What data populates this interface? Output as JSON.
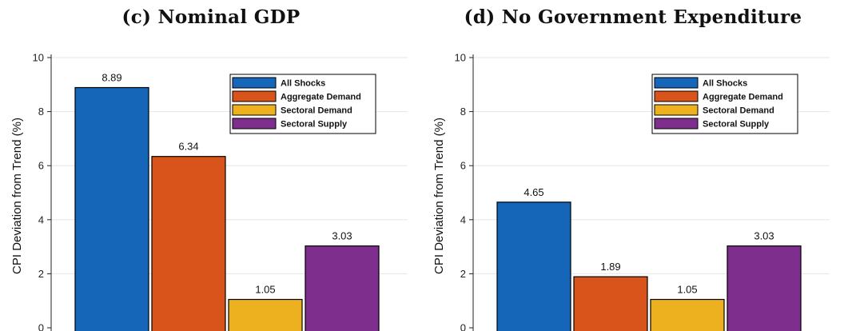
{
  "colors": {
    "all_shocks": "#1565b8",
    "aggregate_demand": "#d9541a",
    "sectoral_demand": "#edb120",
    "sectoral_supply": "#7e2f8e"
  },
  "chart_data": [
    {
      "type": "bar",
      "title": "(c) Nominal GDP",
      "ylabel": "CPI Deviation from Trend (%)",
      "ylim": [
        0,
        10
      ],
      "yticks": [
        0,
        2,
        4,
        6,
        8,
        10
      ],
      "grid": true,
      "legend_position": "top-right",
      "categories": [
        "All Shocks",
        "Aggregate Demand",
        "Sectoral Demand",
        "Sectoral Supply"
      ],
      "values": [
        8.89,
        6.34,
        1.05,
        3.03
      ],
      "data_labels": [
        "8.89",
        "6.34",
        "1.05",
        "3.03"
      ]
    },
    {
      "type": "bar",
      "title": "(d) No Government Expenditure",
      "ylabel": "CPI Deviation from Trend (%)",
      "ylim": [
        0,
        10
      ],
      "yticks": [
        0,
        2,
        4,
        6,
        8,
        10
      ],
      "grid": true,
      "legend_position": "top-right",
      "categories": [
        "All Shocks",
        "Aggregate Demand",
        "Sectoral Demand",
        "Sectoral Supply"
      ],
      "values": [
        4.65,
        1.89,
        1.05,
        3.03
      ],
      "data_labels": [
        "4.65",
        "1.89",
        "1.05",
        "3.03"
      ]
    }
  ]
}
